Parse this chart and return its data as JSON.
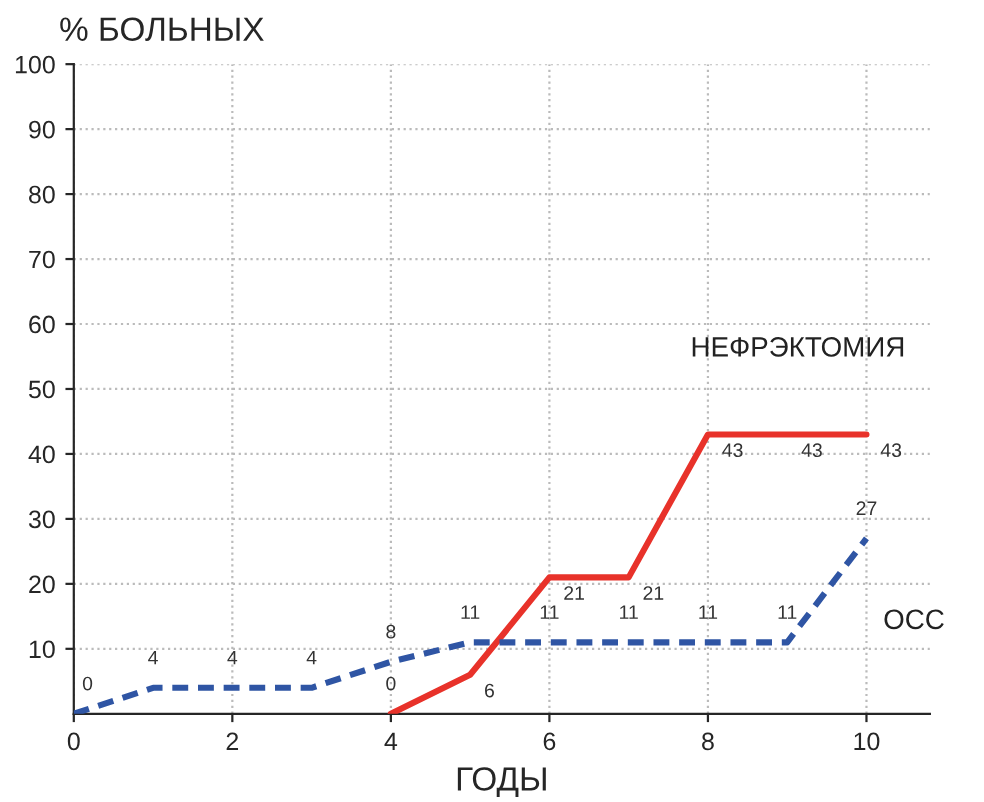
{
  "chart_data": {
    "type": "line",
    "ylabel": "% БОЛЬНЫХ",
    "xlabel": "ГОДЫ",
    "xlim": [
      0,
      10.8
    ],
    "xticks": [
      0,
      2,
      4,
      6,
      8,
      10
    ],
    "ylim": [
      0,
      100
    ],
    "yticks": [
      10,
      20,
      30,
      40,
      50,
      60,
      70,
      80,
      90,
      100
    ],
    "grid": true,
    "data_labels": true,
    "marker": "none",
    "legend": false,
    "series": [
      {
        "name": "НЕФРЭКТОМИЯ",
        "color": "#e8322a",
        "line_style": "solid",
        "x": [
          4,
          5,
          6,
          7,
          8,
          9,
          10
        ],
        "values": [
          0,
          6,
          21,
          21,
          43,
          43,
          43
        ]
      },
      {
        "name": "ОСС",
        "color": "#2f55a4",
        "line_style": "dashed",
        "x": [
          0,
          1,
          2,
          3,
          4,
          5,
          6,
          7,
          8,
          9,
          10
        ],
        "values": [
          0,
          4,
          4,
          4,
          8,
          11,
          11,
          11,
          11,
          11,
          27
        ]
      }
    ]
  }
}
